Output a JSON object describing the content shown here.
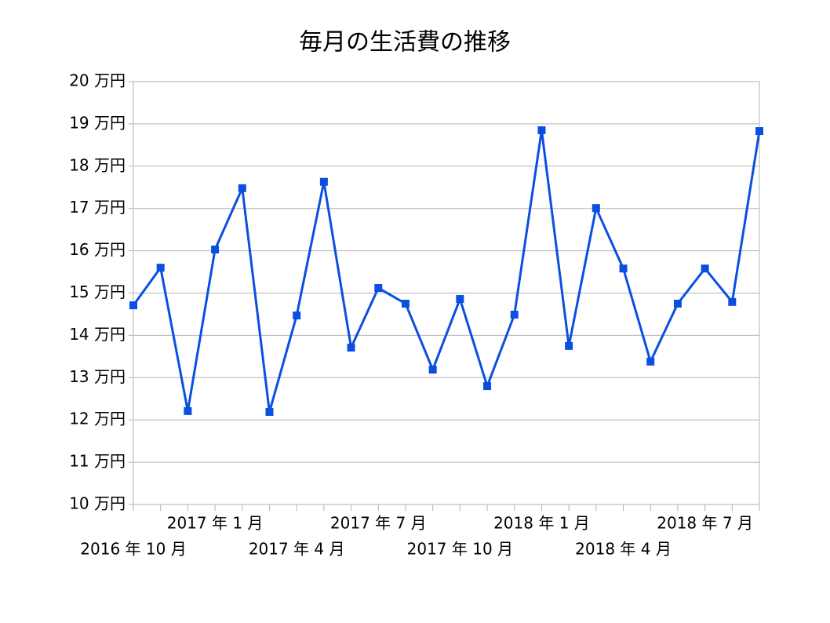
{
  "chart_data": {
    "type": "line",
    "title": "毎月の生活費の推移",
    "categories": [
      "2016 年 10 月",
      null,
      null,
      "2017 年 1 月",
      null,
      null,
      "2017 年 4 月",
      null,
      null,
      "2017 年 7 月",
      null,
      null,
      "2017 年 10 月",
      null,
      null,
      "2018 年 1 月",
      null,
      null,
      "2018 年 4 月",
      null,
      null,
      "2018 年 7 月",
      null,
      null
    ],
    "series": [
      {
        "color": "#0a4fe0",
        "values": [
          14.71,
          15.6,
          12.21,
          16.03,
          17.48,
          12.19,
          14.47,
          17.63,
          13.71,
          15.12,
          14.75,
          13.19,
          14.86,
          12.8,
          14.49,
          18.85,
          13.75,
          17.01,
          15.58,
          13.38,
          14.75,
          15.58,
          14.79,
          18.83
        ]
      }
    ],
    "ylim": [
      10,
      20
    ],
    "yticks": [
      {
        "value": 10,
        "label": "10 万円"
      },
      {
        "value": 11,
        "label": "11 万円"
      },
      {
        "value": 12,
        "label": "12 万円"
      },
      {
        "value": 13,
        "label": "13 万円"
      },
      {
        "value": 14,
        "label": "14 万円"
      },
      {
        "value": 15,
        "label": "15 万円"
      },
      {
        "value": 16,
        "label": "16 万円"
      },
      {
        "value": 17,
        "label": "17 万円"
      },
      {
        "value": 18,
        "label": "18 万円"
      },
      {
        "value": 19,
        "label": "19 万円"
      },
      {
        "value": 20,
        "label": "20 万円"
      }
    ],
    "grid": true
  }
}
